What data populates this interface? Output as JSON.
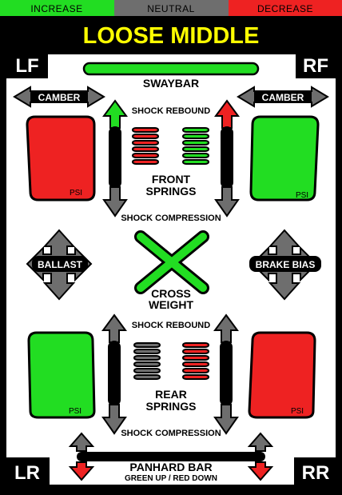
{
  "legend": {
    "increase": "INCREASE",
    "neutral": "NEUTRAL",
    "decrease": "DECREASE"
  },
  "title": "LOOSE MIDDLE",
  "corners": {
    "lf": "LF",
    "rf": "RF",
    "lr": "LR",
    "rr": "RR"
  },
  "labels": {
    "swaybar": "SWAYBAR",
    "camber_left": "CAMBER",
    "camber_right": "CAMBER",
    "shock_rebound_front": "SHOCK REBOUND",
    "shock_compression_front": "SHOCK COMPRESSION",
    "front_springs_1": "FRONT",
    "front_springs_2": "SPRINGS",
    "ballast": "BALLAST",
    "brake_bias": "BRAKE BIAS",
    "cross_weight_1": "CROSS",
    "cross_weight_2": "WEIGHT",
    "shock_rebound_rear": "SHOCK REBOUND",
    "shock_compression_rear": "SHOCK COMPRESSION",
    "rear_springs_1": "REAR",
    "rear_springs_2": "SPRINGS",
    "panhard_bar": "PANHARD BAR",
    "panhard_note": "GREEN UP / RED DOWN"
  },
  "tires": {
    "lf": "PSI",
    "rf": "PSI",
    "lr": "PSI",
    "rr": "PSI"
  },
  "colors": {
    "increase": "#22dd22",
    "neutral": "#6e6e6e",
    "decrease": "#ee2222",
    "title": "#ffff00",
    "panel": "#ffffff"
  }
}
